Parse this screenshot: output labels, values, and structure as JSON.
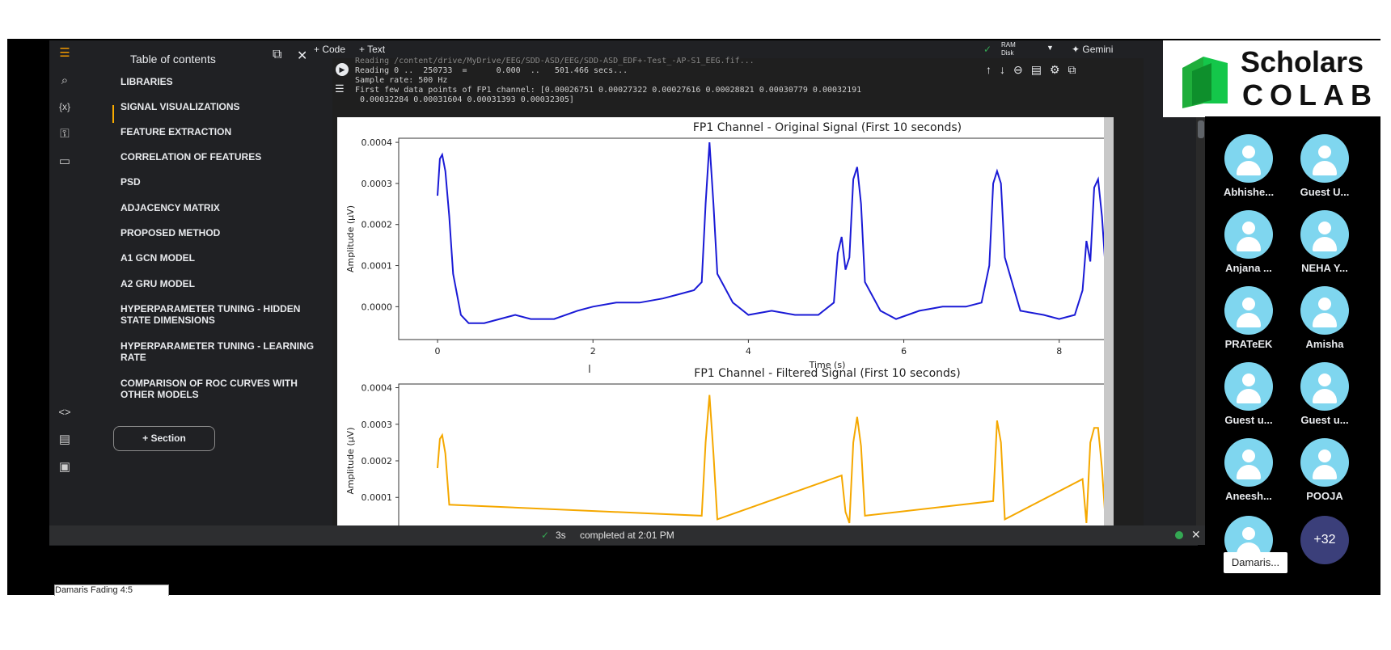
{
  "toc": {
    "title": "Table of contents",
    "items": [
      "LIBRARIES",
      "SIGNAL VISUALIZATIONS",
      "FEATURE EXTRACTION",
      "CORRELATION OF FEATURES",
      "PSD",
      "ADJACENCY MATRIX",
      "PROPOSED METHOD",
      "A1 GCN MODEL",
      "A2 GRU MODEL",
      "HYPERPARAMETER TUNING - HIDDEN STATE DIMENSIONS",
      "HYPERPARAMETER TUNING - LEARNING RATE",
      "COMPARISON OF ROC CURVES WITH OTHER MODELS"
    ],
    "section_button": "Section"
  },
  "toolbar": {
    "code": "Code",
    "text": "Text",
    "ram": "RAM",
    "disk": "Disk",
    "gemini": "Gemini"
  },
  "output": {
    "line0": "Reading /content/drive/MyDrive/EEG/SDD-ASD/EEG/SDD-ASD_EDF+-Test_-AP-S1_EEG.fif...",
    "line1": "Reading 0 ..  250733  =      0.000  ..   501.466 secs...",
    "line2": "Sample rate: 500 Hz",
    "line3": "First few data points of FP1 channel: [0.00026751 0.00027322 0.00027616 0.00028821 0.00030779 0.00032191",
    "line4": " 0.00032284 0.00031604 0.00031393 0.00032305]"
  },
  "status": {
    "time": "3s",
    "completed": "completed at 2:01 PM"
  },
  "logo": {
    "line1": "Scholars",
    "line2": "COLAB"
  },
  "participants": [
    "Abhishe...",
    "Guest U...",
    "Anjana ...",
    "NEHA Y...",
    "PRATeEK",
    "Amisha",
    "Guest u...",
    "Guest u...",
    "Aneesh...",
    "POOJA"
  ],
  "more_count": "+32",
  "tooltip": "Damaris...",
  "fragment": "Damaris Fading 4:5",
  "chart_data": [
    {
      "type": "line",
      "title": "FP1 Channel - Original Signal (First 10 seconds)",
      "xlabel": "Time (s)",
      "ylabel": "Amplitude (µV)",
      "xlim": [
        -0.5,
        8.7
      ],
      "ylim": [
        -8e-05,
        0.00041
      ],
      "xticks": [
        "0",
        "2",
        "4",
        "6",
        "8"
      ],
      "yticks": [
        "0.0000",
        "0.0001",
        "0.0002",
        "0.0003",
        "0.0004"
      ],
      "color": "#1a1ad6",
      "x": [
        0,
        0.03,
        0.06,
        0.1,
        0.15,
        0.2,
        0.3,
        0.4,
        0.6,
        0.8,
        1.0,
        1.2,
        1.5,
        1.8,
        2.0,
        2.3,
        2.6,
        2.9,
        3.1,
        3.3,
        3.4,
        3.45,
        3.5,
        3.55,
        3.6,
        3.8,
        4.0,
        4.3,
        4.6,
        4.9,
        5.1,
        5.15,
        5.2,
        5.25,
        5.3,
        5.35,
        5.4,
        5.45,
        5.5,
        5.7,
        5.9,
        6.2,
        6.5,
        6.8,
        7.0,
        7.1,
        7.15,
        7.2,
        7.25,
        7.3,
        7.5,
        7.8,
        8.0,
        8.2,
        8.3,
        8.35,
        8.4,
        8.45,
        8.5,
        8.55,
        8.6,
        8.7
      ],
      "y": [
        0.00027,
        0.00036,
        0.00037,
        0.00033,
        0.00022,
        8e-05,
        -2e-05,
        -4e-05,
        -4e-05,
        -3e-05,
        -2e-05,
        -3e-05,
        -3e-05,
        -1e-05,
        0,
        1e-05,
        1e-05,
        2e-05,
        3e-05,
        4e-05,
        6e-05,
        0.00025,
        0.0004,
        0.00025,
        8e-05,
        1e-05,
        -2e-05,
        -1e-05,
        -2e-05,
        -2e-05,
        1e-05,
        0.00013,
        0.00017,
        9e-05,
        0.00012,
        0.00031,
        0.00034,
        0.00025,
        6e-05,
        -1e-05,
        -3e-05,
        -1e-05,
        0,
        0,
        1e-05,
        0.0001,
        0.0003,
        0.00033,
        0.0003,
        0.00012,
        -1e-05,
        -2e-05,
        -3e-05,
        -2e-05,
        4e-05,
        0.00016,
        0.00011,
        0.00029,
        0.00031,
        0.00022,
        8e-05,
        1e-05
      ]
    },
    {
      "type": "line",
      "title": "FP1 Channel - Filtered Signal (First 10 seconds)",
      "xlabel": "",
      "ylabel": "Amplitude (µV)",
      "xlim": [
        -0.5,
        8.7
      ],
      "ylim": [
        -1e-05,
        0.00041
      ],
      "yticks": [
        "0.0001",
        "0.0002",
        "0.0003",
        "0.0004"
      ],
      "color": "#f5a800",
      "x": [
        0,
        0.03,
        0.06,
        0.1,
        0.15,
        3.4,
        3.45,
        3.5,
        3.55,
        3.6,
        5.2,
        5.25,
        5.3,
        5.35,
        5.4,
        5.45,
        5.5,
        7.15,
        7.2,
        7.25,
        7.3,
        8.3,
        8.35,
        8.4,
        8.45,
        8.5,
        8.55,
        8.6
      ],
      "y": [
        0.00018,
        0.00026,
        0.00027,
        0.00022,
        8e-05,
        5e-05,
        0.00025,
        0.00038,
        0.00022,
        4e-05,
        0.00016,
        6e-05,
        3e-05,
        0.00025,
        0.00032,
        0.00024,
        5e-05,
        9e-05,
        0.00031,
        0.00025,
        4e-05,
        0.00015,
        3e-05,
        0.00025,
        0.00029,
        0.00029,
        0.00018,
        2e-05
      ]
    }
  ]
}
